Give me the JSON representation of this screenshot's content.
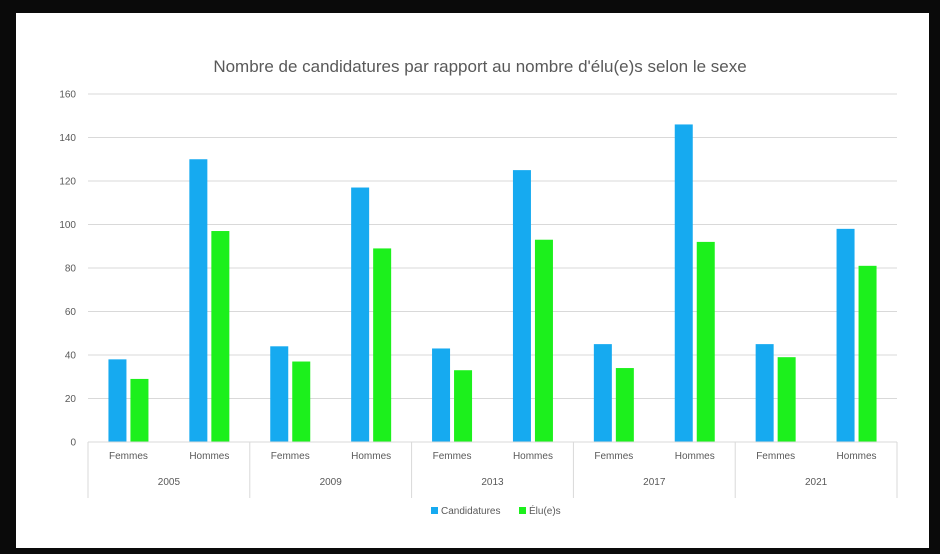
{
  "chart_data": {
    "type": "bar",
    "title": "Nombre de candidatures par rapport au nombre d'élu(e)s selon le sexe",
    "xlabel": "",
    "ylabel": "",
    "ylim": [
      0,
      160
    ],
    "yticks": [
      0,
      20,
      40,
      60,
      80,
      100,
      120,
      140,
      160
    ],
    "grid": true,
    "legend_position": "bottom",
    "groups": [
      "2005",
      "2009",
      "2013",
      "2017",
      "2021"
    ],
    "subcategories": [
      "Femmes",
      "Hommes"
    ],
    "categories": [
      "2005 Femmes",
      "2005 Hommes",
      "2009 Femmes",
      "2009 Hommes",
      "2013 Femmes",
      "2013 Hommes",
      "2017 Femmes",
      "2017 Hommes",
      "2021 Femmes",
      "2021 Hommes"
    ],
    "series": [
      {
        "name": "Candidatures",
        "color": "#16aaf0",
        "values": [
          38,
          130,
          44,
          117,
          43,
          125,
          45,
          146,
          45,
          98
        ]
      },
      {
        "name": "Élu(e)s",
        "color": "#1cf01c",
        "values": [
          29,
          97,
          37,
          89,
          33,
          93,
          34,
          92,
          39,
          81
        ]
      }
    ]
  }
}
